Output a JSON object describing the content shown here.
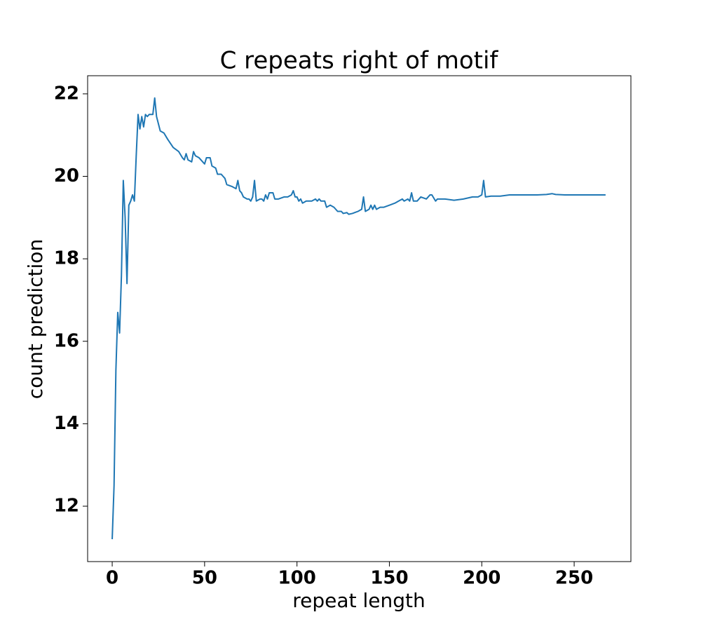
{
  "chart_data": {
    "type": "line",
    "title": "C repeats right of motif",
    "x_label": "repeat length",
    "y_label": "count prediction",
    "series": [
      {
        "color": "#1f77b4",
        "x": [
          0,
          1,
          2,
          3,
          4,
          5,
          6,
          7,
          8,
          9,
          10,
          11,
          12,
          13,
          14,
          15,
          16,
          17,
          18,
          19,
          20,
          22,
          23,
          24,
          26,
          28,
          30,
          33,
          36,
          38,
          39,
          40,
          41,
          43,
          44,
          45,
          47,
          49,
          50,
          51,
          53,
          54,
          56,
          57,
          59,
          60,
          61,
          62,
          65,
          67,
          68,
          69,
          70,
          71,
          73,
          74,
          75,
          76,
          77,
          78,
          80,
          81,
          82,
          83,
          84,
          85,
          87,
          88,
          90,
          93,
          95,
          97,
          98,
          99,
          100,
          101,
          102,
          103,
          105,
          108,
          110,
          111,
          112,
          113,
          115,
          116,
          118,
          120,
          122,
          124,
          125,
          127,
          128,
          130,
          133,
          135,
          136,
          137,
          139,
          140,
          141,
          142,
          143,
          145,
          147,
          150,
          153,
          155,
          157,
          158,
          160,
          161,
          162,
          163,
          165,
          167,
          170,
          172,
          173,
          175,
          176,
          180,
          185,
          190,
          195,
          198,
          200,
          201,
          202,
          205,
          210,
          215,
          220,
          225,
          230,
          235,
          238,
          240,
          245,
          250,
          255,
          260,
          267
        ],
        "values": [
          11.2,
          12.5,
          15.3,
          16.7,
          16.2,
          17.6,
          19.9,
          19.0,
          17.4,
          19.3,
          19.4,
          19.55,
          19.4,
          20.5,
          21.5,
          21.15,
          21.45,
          21.2,
          21.5,
          21.45,
          21.5,
          21.5,
          21.9,
          21.45,
          21.1,
          21.05,
          20.9,
          20.7,
          20.6,
          20.45,
          20.4,
          20.55,
          20.4,
          20.35,
          20.6,
          20.5,
          20.45,
          20.35,
          20.3,
          20.45,
          20.45,
          20.25,
          20.2,
          20.05,
          20.05,
          20.0,
          19.95,
          19.8,
          19.75,
          19.7,
          19.9,
          19.65,
          19.6,
          19.5,
          19.45,
          19.45,
          19.4,
          19.5,
          19.9,
          19.4,
          19.45,
          19.45,
          19.4,
          19.55,
          19.45,
          19.6,
          19.6,
          19.45,
          19.45,
          19.5,
          19.5,
          19.55,
          19.65,
          19.5,
          19.5,
          19.4,
          19.45,
          19.35,
          19.4,
          19.4,
          19.45,
          19.4,
          19.45,
          19.4,
          19.4,
          19.25,
          19.3,
          19.25,
          19.15,
          19.15,
          19.1,
          19.12,
          19.08,
          19.1,
          19.15,
          19.2,
          19.5,
          19.15,
          19.2,
          19.3,
          19.2,
          19.3,
          19.2,
          19.25,
          19.25,
          19.3,
          19.35,
          19.4,
          19.45,
          19.4,
          19.45,
          19.4,
          19.6,
          19.4,
          19.4,
          19.5,
          19.45,
          19.55,
          19.55,
          19.4,
          19.45,
          19.45,
          19.42,
          19.45,
          19.5,
          19.5,
          19.55,
          19.9,
          19.5,
          19.52,
          19.52,
          19.55,
          19.55,
          19.55,
          19.55,
          19.56,
          19.58,
          19.56,
          19.55,
          19.55,
          19.55,
          19.55,
          19.55
        ]
      }
    ],
    "xlim": [
      -13.3,
      280.7
    ],
    "ylim": [
      10.657,
      22.44
    ],
    "xticks": [
      0,
      50,
      100,
      150,
      200,
      250
    ],
    "yticks": [
      12,
      14,
      16,
      18,
      20,
      22
    ]
  }
}
